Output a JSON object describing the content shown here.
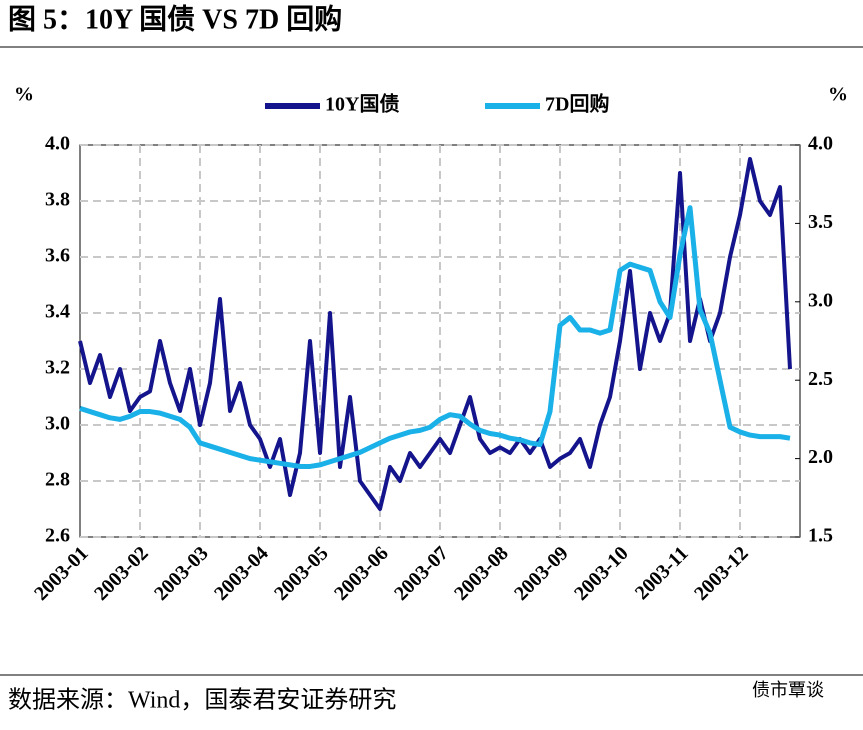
{
  "chart_data": {
    "type": "line",
    "title": "图 5：10Y 国债 VS 7D 回购",
    "y_label": "%",
    "y2_label": "%",
    "source": "数据来源：Wind，国泰君安证券研究",
    "watermark": "债市覃谈",
    "categories": [
      "2003-01",
      null,
      null,
      null,
      null,
      null,
      "2003-02",
      null,
      null,
      null,
      null,
      null,
      "2003-03",
      null,
      null,
      null,
      null,
      null,
      "2003-04",
      null,
      null,
      null,
      null,
      null,
      "2003-05",
      null,
      null,
      null,
      null,
      null,
      "2003-06",
      null,
      null,
      null,
      null,
      null,
      "2003-07",
      null,
      null,
      null,
      null,
      null,
      "2003-08",
      null,
      null,
      null,
      null,
      null,
      "2003-09",
      null,
      null,
      null,
      null,
      null,
      "2003-10",
      null,
      null,
      null,
      null,
      null,
      "2003-11",
      null,
      null,
      null,
      null,
      null,
      "2003-12",
      null,
      null,
      null,
      null,
      null
    ],
    "series": [
      {
        "name": "10Y国债",
        "color": "#14148c",
        "values": [
          3.3,
          3.15,
          3.25,
          3.1,
          3.2,
          3.05,
          3.1,
          3.12,
          3.3,
          3.15,
          3.05,
          3.2,
          3.0,
          3.15,
          3.45,
          3.05,
          3.15,
          3.0,
          2.95,
          2.85,
          2.95,
          2.75,
          2.9,
          3.3,
          2.9,
          3.4,
          2.85,
          3.1,
          2.8,
          2.75,
          2.7,
          2.85,
          2.8,
          2.9,
          2.85,
          2.9,
          2.95,
          2.9,
          3.0,
          3.1,
          2.95,
          2.9,
          2.92,
          2.9,
          2.95,
          2.9,
          2.95,
          2.85,
          2.88,
          2.9,
          2.95,
          2.85,
          3.0,
          3.1,
          3.3,
          3.55,
          3.2,
          3.4,
          3.3,
          3.4,
          3.9,
          3.3,
          3.45,
          3.3,
          3.4,
          3.6,
          3.75,
          3.95,
          3.8,
          3.75,
          3.85,
          3.2
        ]
      },
      {
        "name": "7D回购",
        "color": "#1ab0e8",
        "axis": "y2",
        "values": [
          2.32,
          2.3,
          2.28,
          2.26,
          2.25,
          2.27,
          2.3,
          2.3,
          2.29,
          2.27,
          2.25,
          2.2,
          2.1,
          2.08,
          2.06,
          2.04,
          2.02,
          2.0,
          1.99,
          1.98,
          1.97,
          1.96,
          1.95,
          1.95,
          1.96,
          1.98,
          2.0,
          2.02,
          2.04,
          2.07,
          2.1,
          2.13,
          2.15,
          2.17,
          2.18,
          2.2,
          2.25,
          2.28,
          2.27,
          2.22,
          2.18,
          2.16,
          2.15,
          2.13,
          2.12,
          2.1,
          2.09,
          2.3,
          2.85,
          2.9,
          2.82,
          2.82,
          2.8,
          2.82,
          3.2,
          3.24,
          3.22,
          3.2,
          3.0,
          2.9,
          3.3,
          3.6,
          2.95,
          2.8,
          2.5,
          2.2,
          2.17,
          2.15,
          2.14,
          2.14,
          2.14,
          2.13
        ]
      }
    ],
    "ylim": [
      2.6,
      4.0
    ],
    "yticks": [
      2.6,
      2.8,
      {
        "value": 3.0,
        "label": "3.0"
      },
      3.2,
      3.4,
      3.6,
      3.8,
      {
        "value": 4.0,
        "label": "4.0"
      }
    ],
    "y2lim": [
      1.5,
      4.0
    ],
    "y2ticks": [
      1.5,
      {
        "value": 2.0,
        "label": "2.0"
      },
      2.5,
      {
        "value": 3.0,
        "label": "3.0"
      },
      3.5,
      {
        "value": 4.0,
        "label": "4.0"
      }
    ],
    "grid": true
  }
}
